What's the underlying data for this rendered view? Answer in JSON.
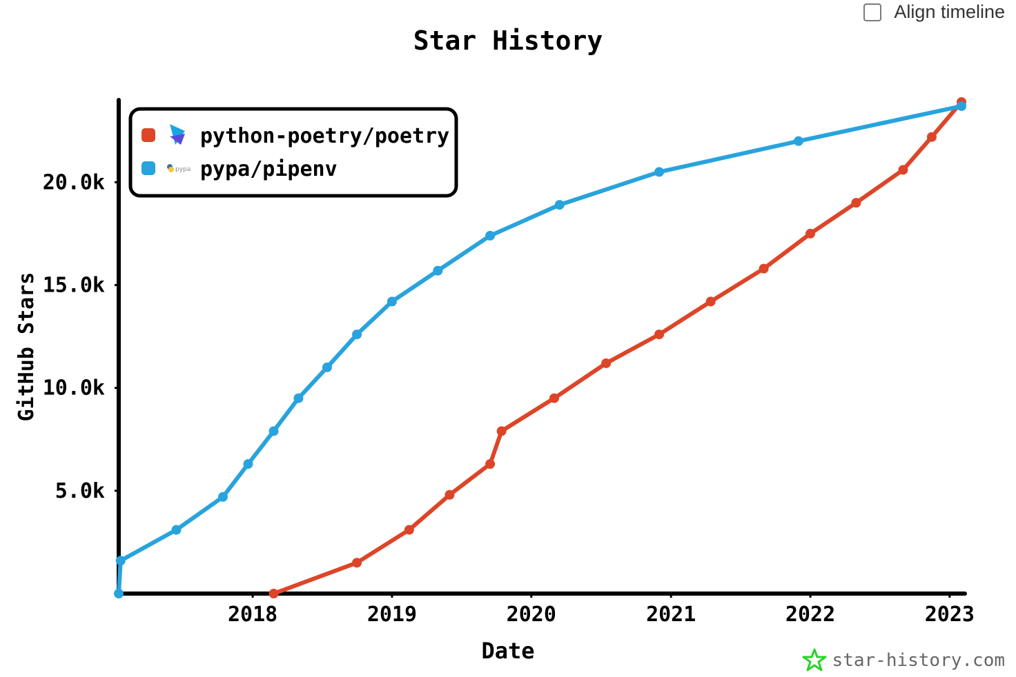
{
  "toggle": {
    "label": "Align timeline"
  },
  "watermark": {
    "text": "star-history.com"
  },
  "colors": {
    "poetry": "#dd4528",
    "pipenv": "#28a3dd",
    "axis": "#000000",
    "brand": "#2bd12b"
  },
  "chart_data": {
    "type": "line",
    "title": "Star History",
    "xlabel": "Date",
    "ylabel": "GitHub Stars",
    "xlim": [
      "2017-01-15",
      "2023-02-10"
    ],
    "ylim": [
      0,
      24000
    ],
    "x_ticks": [
      "2018",
      "2019",
      "2020",
      "2021",
      "2022",
      "2023"
    ],
    "y_ticks": [
      {
        "value": 5000,
        "label": "5.0k"
      },
      {
        "value": 10000,
        "label": "10.0k"
      },
      {
        "value": 15000,
        "label": "15.0k"
      },
      {
        "value": 20000,
        "label": "20.0k"
      }
    ],
    "legend_position": "top-left",
    "series": [
      {
        "name": "python-poetry/poetry",
        "icon": "poetry-logo-icon",
        "points": [
          [
            "2018-02-25",
            0
          ],
          [
            "2018-10-01",
            1500
          ],
          [
            "2019-02-15",
            3100
          ],
          [
            "2019-06-01",
            4800
          ],
          [
            "2019-09-15",
            6300
          ],
          [
            "2019-10-15",
            7900
          ],
          [
            "2020-03-01",
            9500
          ],
          [
            "2020-07-15",
            11200
          ],
          [
            "2020-12-01",
            12600
          ],
          [
            "2021-04-15",
            14200
          ],
          [
            "2021-09-01",
            15800
          ],
          [
            "2022-01-01",
            17500
          ],
          [
            "2022-05-01",
            19000
          ],
          [
            "2022-09-01",
            20600
          ],
          [
            "2022-11-15",
            22200
          ],
          [
            "2023-02-01",
            23900
          ]
        ]
      },
      {
        "name": "pypa/pipenv",
        "icon": "pypa-logo-icon",
        "points": [
          [
            "2017-01-15",
            0
          ],
          [
            "2017-01-20",
            1600
          ],
          [
            "2017-06-15",
            3100
          ],
          [
            "2017-10-15",
            4700
          ],
          [
            "2017-12-20",
            6300
          ],
          [
            "2018-02-25",
            7900
          ],
          [
            "2018-05-01",
            9500
          ],
          [
            "2018-07-15",
            11000
          ],
          [
            "2018-10-01",
            12600
          ],
          [
            "2019-01-01",
            14200
          ],
          [
            "2019-05-01",
            15700
          ],
          [
            "2019-09-15",
            17400
          ],
          [
            "2020-03-15",
            18900
          ],
          [
            "2020-12-01",
            20500
          ],
          [
            "2021-12-01",
            22000
          ],
          [
            "2023-02-01",
            23700
          ]
        ]
      }
    ]
  }
}
